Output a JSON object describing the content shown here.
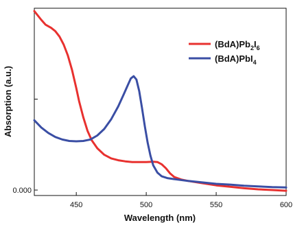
{
  "chart_data": {
    "type": "line",
    "xlabel": "Wavelength (nm)",
    "ylabel": "Absorption (a.u.)",
    "xlim": [
      420,
      600
    ],
    "ylim": [
      -0.015,
      0.5
    ],
    "x_ticks": [
      450,
      500,
      550,
      600
    ],
    "x_tick_labels": [
      "450",
      "500",
      "550",
      "600"
    ],
    "y_ticks": [
      0.0,
      0.25
    ],
    "y_tick_labels": [
      "0.000",
      ""
    ],
    "grid": false,
    "legend_position": "top-right",
    "series": [
      {
        "name": "(BdA)Pb2I6",
        "legend_parts": [
          {
            "text": "(BdA)Pb",
            "sub": false
          },
          {
            "text": "2",
            "sub": true
          },
          {
            "text": "I",
            "sub": false
          },
          {
            "text": "6",
            "sub": true
          }
        ],
        "color": "#e8312f",
        "points": [
          [
            420,
            0.492
          ],
          [
            425,
            0.468
          ],
          [
            428,
            0.455
          ],
          [
            432,
            0.446
          ],
          [
            435,
            0.437
          ],
          [
            438,
            0.422
          ],
          [
            441,
            0.4
          ],
          [
            444,
            0.37
          ],
          [
            447,
            0.33
          ],
          [
            450,
            0.28
          ],
          [
            452,
            0.245
          ],
          [
            455,
            0.2
          ],
          [
            458,
            0.163
          ],
          [
            461,
            0.137
          ],
          [
            465,
            0.115
          ],
          [
            470,
            0.097
          ],
          [
            475,
            0.087
          ],
          [
            480,
            0.082
          ],
          [
            485,
            0.079
          ],
          [
            490,
            0.077
          ],
          [
            495,
            0.077
          ],
          [
            500,
            0.077
          ],
          [
            505,
            0.078
          ],
          [
            508,
            0.077
          ],
          [
            511,
            0.071
          ],
          [
            514,
            0.06
          ],
          [
            517,
            0.046
          ],
          [
            520,
            0.036
          ],
          [
            525,
            0.029
          ],
          [
            530,
            0.025
          ],
          [
            540,
            0.019
          ],
          [
            550,
            0.013
          ],
          [
            560,
            0.009
          ],
          [
            570,
            0.005
          ],
          [
            580,
            0.002
          ],
          [
            590,
            0.0
          ],
          [
            600,
            -0.002
          ]
        ]
      },
      {
        "name": "(BdA)PbI4",
        "legend_parts": [
          {
            "text": "(BdA)PbI",
            "sub": false
          },
          {
            "text": "4",
            "sub": true
          }
        ],
        "color": "#3a4ea4",
        "points": [
          [
            420,
            0.192
          ],
          [
            425,
            0.172
          ],
          [
            430,
            0.157
          ],
          [
            435,
            0.146
          ],
          [
            440,
            0.139
          ],
          [
            445,
            0.135
          ],
          [
            450,
            0.134
          ],
          [
            455,
            0.135
          ],
          [
            460,
            0.139
          ],
          [
            465,
            0.15
          ],
          [
            470,
            0.168
          ],
          [
            475,
            0.195
          ],
          [
            480,
            0.23
          ],
          [
            484,
            0.264
          ],
          [
            487,
            0.29
          ],
          [
            489,
            0.307
          ],
          [
            491,
            0.313
          ],
          [
            493,
            0.304
          ],
          [
            495,
            0.272
          ],
          [
            497,
            0.225
          ],
          [
            499,
            0.175
          ],
          [
            501,
            0.13
          ],
          [
            503,
            0.095
          ],
          [
            505,
            0.068
          ],
          [
            508,
            0.048
          ],
          [
            511,
            0.038
          ],
          [
            515,
            0.033
          ],
          [
            520,
            0.03
          ],
          [
            530,
            0.025
          ],
          [
            540,
            0.021
          ],
          [
            550,
            0.017
          ],
          [
            560,
            0.015
          ],
          [
            570,
            0.012
          ],
          [
            580,
            0.01
          ],
          [
            590,
            0.008
          ],
          [
            600,
            0.007
          ]
        ]
      }
    ]
  }
}
